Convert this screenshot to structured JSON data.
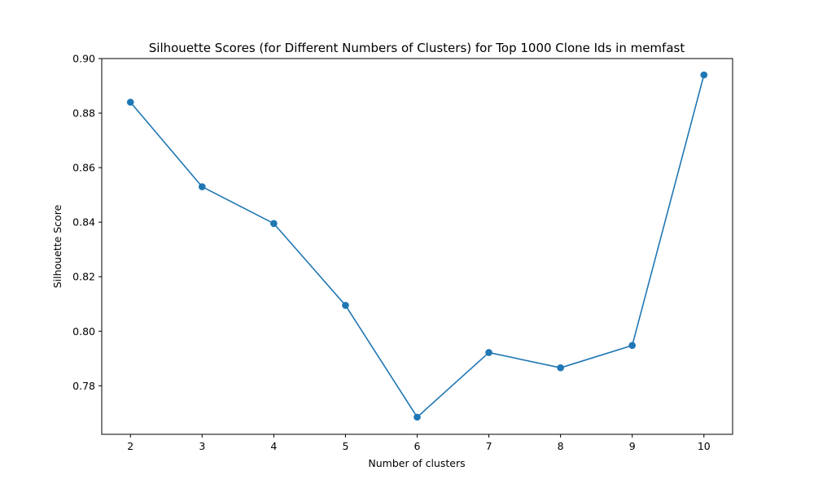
{
  "chart_data": {
    "type": "line",
    "title": "Silhouette Scores (for Different Numbers of Clusters) for Top 1000 Clone Ids in memfast",
    "xlabel": "Number of clusters",
    "ylabel": "Silhouette Score",
    "x": [
      2,
      3,
      4,
      5,
      6,
      7,
      8,
      9,
      10
    ],
    "series": [
      {
        "values": [
          0.884,
          0.853,
          0.8395,
          0.8095,
          0.7685,
          0.7922,
          0.7866,
          0.7948,
          0.894
        ],
        "color": "#1f77b4",
        "marker": "circle"
      }
    ],
    "xlim": [
      1.6,
      10.4
    ],
    "ylim": [
      0.7622,
      0.9
    ],
    "xticks": [
      "2",
      "3",
      "4",
      "5",
      "6",
      "7",
      "8",
      "9",
      "10"
    ],
    "yticks": [
      "0.78",
      "0.80",
      "0.82",
      "0.84",
      "0.86",
      "0.88",
      "0.90"
    ],
    "grid": false,
    "legend": "none"
  }
}
